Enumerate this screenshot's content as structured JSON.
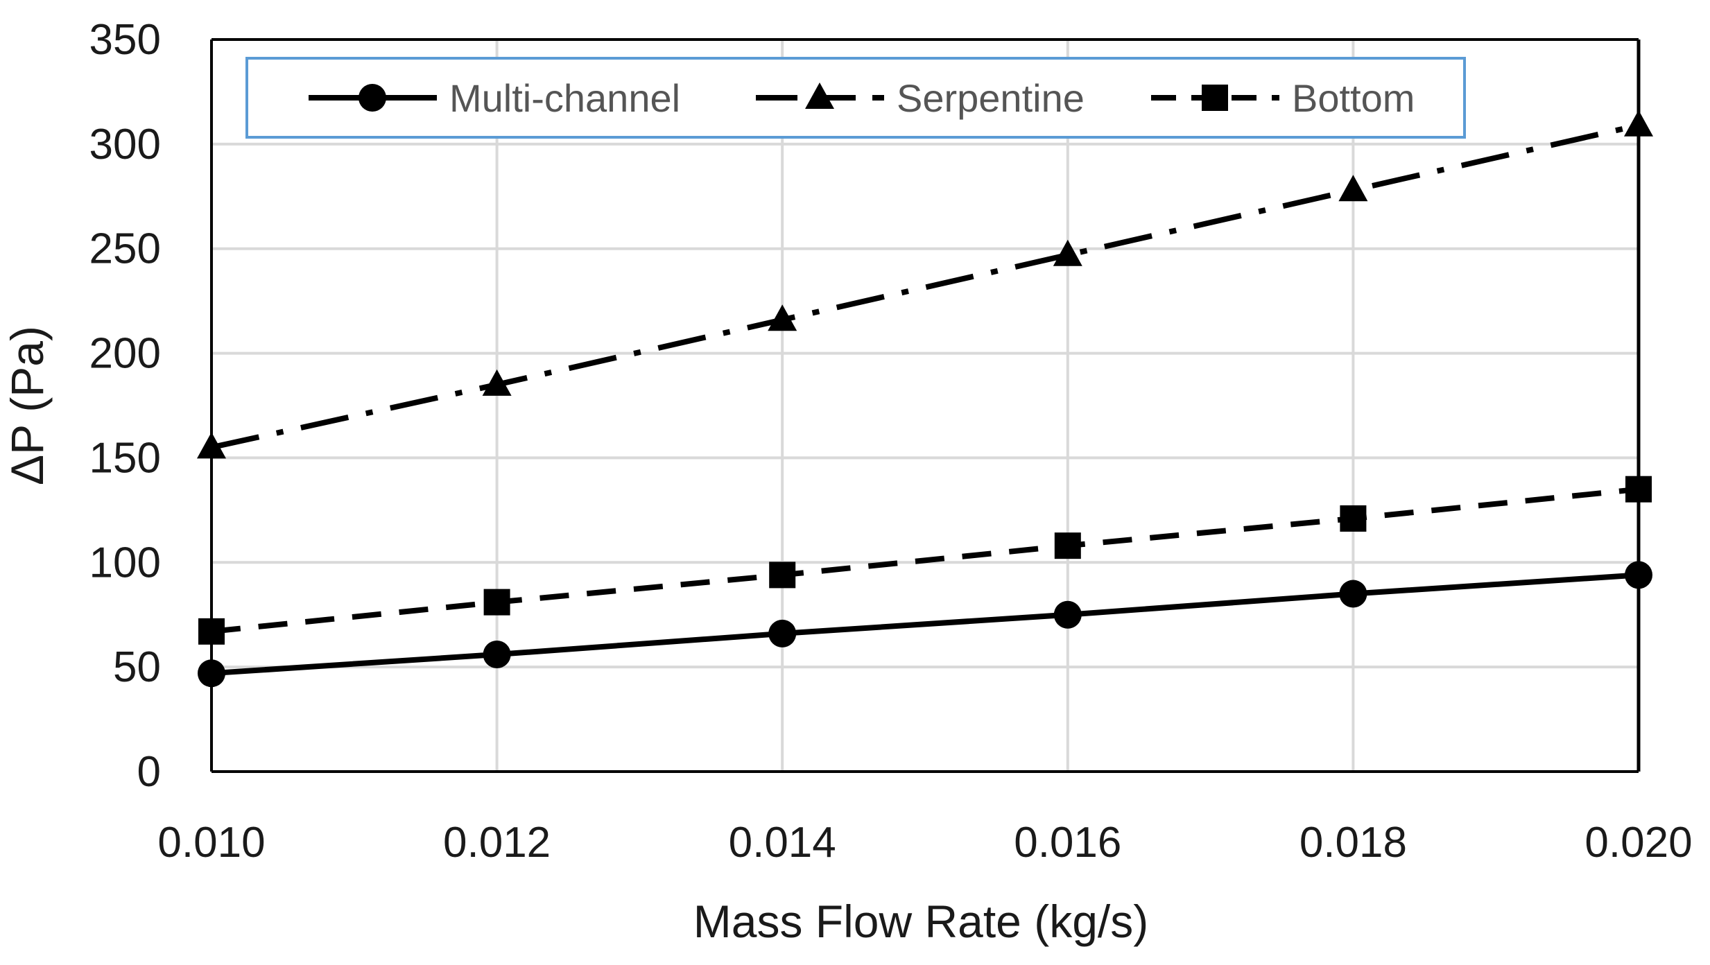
{
  "chart_data": {
    "type": "line",
    "title": "",
    "xlabel": "Mass Flow Rate (kg/s)",
    "ylabel": "ΔP (Pa)",
    "x": [
      0.01,
      0.012,
      0.014,
      0.016,
      0.018,
      0.02
    ],
    "x_tick_labels": [
      "0.010",
      "0.012",
      "0.014",
      "0.016",
      "0.018",
      "0.020"
    ],
    "xlim": [
      0.01,
      0.02
    ],
    "ylim": [
      0,
      350
    ],
    "y_ticks": [
      0,
      50,
      100,
      150,
      200,
      250,
      300,
      350
    ],
    "y_tick_labels": [
      "0",
      "50",
      "100",
      "150",
      "200",
      "250",
      "300",
      "350"
    ],
    "grid": true,
    "legend_position": "top",
    "series": [
      {
        "name": "Multi-channel",
        "marker": "circle",
        "line_style": "solid",
        "values": [
          47,
          56,
          66,
          75,
          85,
          94
        ]
      },
      {
        "name": "Serpentine",
        "marker": "triangle",
        "line_style": "dash-dot",
        "values": [
          155,
          185,
          216,
          247,
          278,
          309
        ]
      },
      {
        "name": "Bottom",
        "marker": "square",
        "line_style": "dashed",
        "values": [
          67,
          81,
          94,
          108,
          121,
          135
        ]
      }
    ],
    "colors": {
      "series": "#000000",
      "grid": "#d9d9d9",
      "legend_border": "#5b9bd5"
    }
  }
}
